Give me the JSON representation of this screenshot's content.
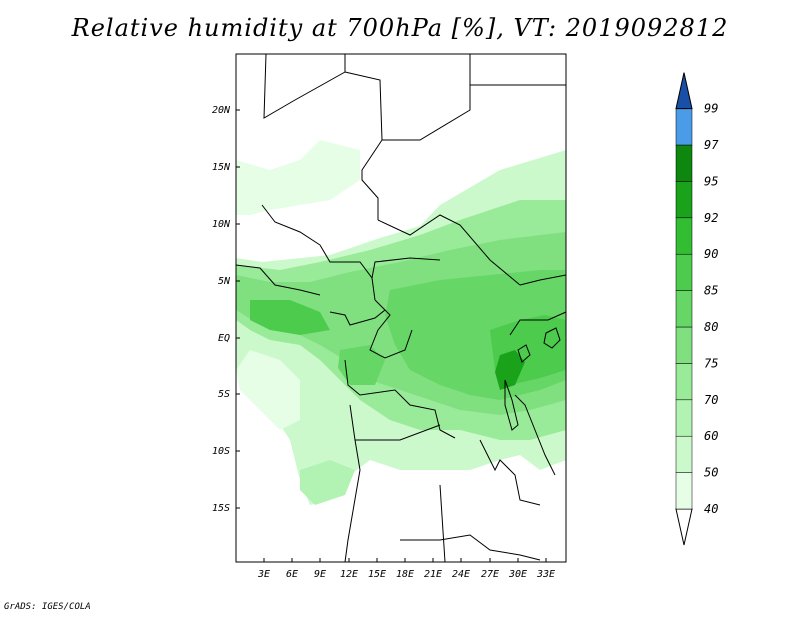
{
  "title": "Relative humidity at 700hPa [%], VT: 2019092812",
  "credit": "GrADS: IGES/COLA",
  "map": {
    "lat_labels": [
      "20N",
      "15N",
      "10N",
      "5N",
      "EQ",
      "5S",
      "10S",
      "15S"
    ],
    "lon_labels": [
      "3E",
      "6E",
      "9E",
      "12E",
      "15E",
      "18E",
      "21E",
      "24E",
      "27E",
      "30E",
      "33E"
    ]
  },
  "colorbar": {
    "levels": [
      "40",
      "50",
      "60",
      "70",
      "75",
      "80",
      "85",
      "90",
      "92",
      "95",
      "97",
      "99"
    ],
    "colors": [
      "#ffffff",
      "#e6fde6",
      "#ccf9cc",
      "#b2f2b2",
      "#99ea99",
      "#80e080",
      "#66d666",
      "#4ccb4c",
      "#33bd33",
      "#1aa31a",
      "#0d870d",
      "#4a9be8",
      "#2f7fd9",
      "#2362c4",
      "#1a4fa8"
    ]
  }
}
